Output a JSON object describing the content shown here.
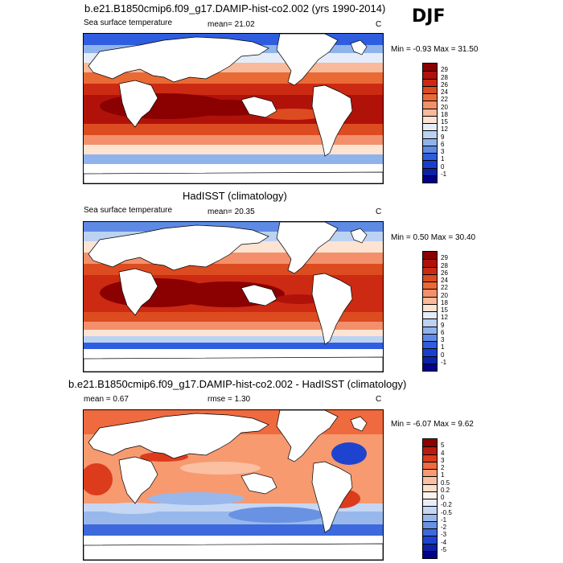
{
  "season": "DJF",
  "panels": [
    {
      "id": "model",
      "title": "b.e21.B1850cmip6.f09_g17.DAMIP-hist-co2.002 (yrs 1990-2014)",
      "variable": "Sea surface temperature",
      "stat1": "mean=  21.02",
      "stat2": "",
      "units": "C",
      "minmax": "Min =  -0.93 Max =  31.50",
      "levels": [
        "29",
        "28",
        "26",
        "24",
        "22",
        "20",
        "18",
        "15",
        "12",
        "9",
        "6",
        "3",
        "1",
        "0",
        "-1"
      ],
      "colors": [
        "#8b0000",
        "#b0120a",
        "#cc2a12",
        "#dd4b20",
        "#ea6a35",
        "#f3906b",
        "#f9b99b",
        "#fde3d2",
        "#e5ecf9",
        "#bcd2f2",
        "#8fb4ec",
        "#5e8ae3",
        "#2f5de0",
        "#163fd2",
        "#0a23a6",
        "#00008b"
      ]
    },
    {
      "id": "obs",
      "title": "HadISST (climatology)",
      "variable": "Sea surface temperature",
      "stat1": "mean=  20.35",
      "stat2": "",
      "units": "C",
      "minmax": "Min =   0.50 Max =  30.40",
      "levels": [
        "29",
        "28",
        "26",
        "24",
        "22",
        "20",
        "18",
        "15",
        "12",
        "9",
        "6",
        "3",
        "1",
        "0",
        "-1"
      ],
      "colors": [
        "#8b0000",
        "#b0120a",
        "#cc2a12",
        "#dd4b20",
        "#ea6a35",
        "#f3906b",
        "#f9b99b",
        "#fde3d2",
        "#e5ecf9",
        "#bcd2f2",
        "#8fb4ec",
        "#5e8ae3",
        "#2f5de0",
        "#163fd2",
        "#0a23a6",
        "#00008b"
      ]
    },
    {
      "id": "diff",
      "title": "b.e21.B1850cmip6.f09_g17.DAMIP-hist-co2.002 - HadISST (climatology)",
      "variable": "",
      "stat1": "mean =   0.67",
      "stat2": "rmse =   1.30",
      "units": "C",
      "minmax": "Min =  -6.07 Max =   9.62",
      "levels": [
        "5",
        "4",
        "3",
        "2",
        "1",
        "0.5",
        "0.2",
        "0",
        "-0.2",
        "-0.5",
        "-1",
        "-2",
        "-3",
        "-4",
        "-5"
      ],
      "colors": [
        "#8b0000",
        "#bb1a0e",
        "#dc3c1c",
        "#ef6a3e",
        "#f79a70",
        "#fbbfa2",
        "#fdddcb",
        "#fdf3ec",
        "#e6eefb",
        "#c5d7f4",
        "#98b8ec",
        "#6a92e2",
        "#3d69dc",
        "#1e44cf",
        "#0b22a8",
        "#00008b"
      ]
    }
  ]
}
